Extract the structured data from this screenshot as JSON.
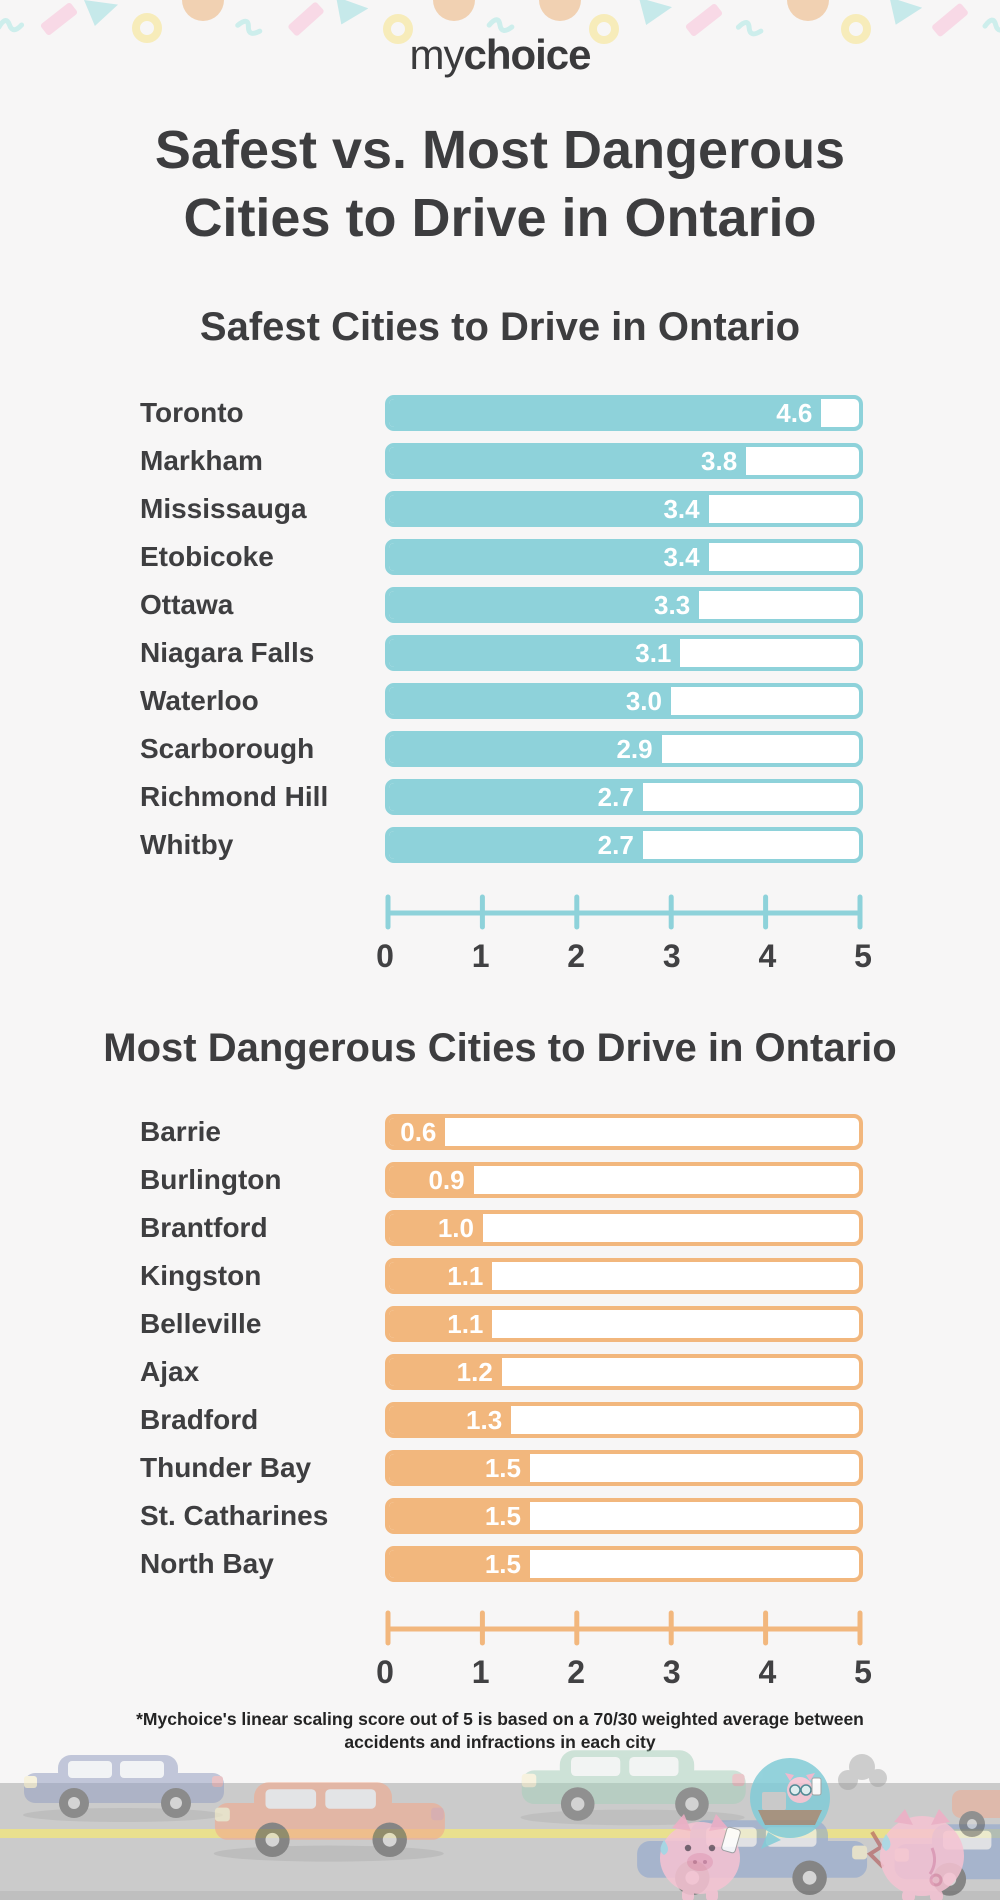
{
  "background_color": "#f7f6f6",
  "brand": {
    "logo_prefix": "my",
    "logo_suffix": "choice",
    "color": "#3a3a3c"
  },
  "header": {
    "title_line1": "Safest vs. Most Dangerous",
    "title_line2": "Cities to Drive in Ontario",
    "color": "#3d3d3f"
  },
  "footnote": {
    "line1": "*Mychoice's linear scaling score out of 5 is based on a 70/30 weighted average between",
    "line2": "accidents and infractions in each city"
  },
  "text_colors": {
    "city_labels": "#3e3e40",
    "axis_numbers": "#414143",
    "value_labels": "#ffffff"
  },
  "decor": {
    "confetti_shapes": [
      "pink-rectangle",
      "yellow-ring",
      "teal-triangle",
      "peach-semicircle",
      "teal-squiggle"
    ],
    "confetti_colors": {
      "pink_rectangle": "#f8d9e6",
      "yellow_ring": "#f7ecba",
      "teal_triangle": "#c6e9ea",
      "peach_semicircle": "#f1d1b2",
      "teal_squiggle": "#cdeeec"
    },
    "illustration_items": [
      "road",
      "yellow-lane-line",
      "blue-car",
      "orange-car",
      "green-car",
      "crashed-blue-cars",
      "smoke",
      "pig-on-phone",
      "pig-back-view",
      "thought-bubble-pig-laptop"
    ]
  },
  "chart_data": [
    {
      "type": "bar",
      "orientation": "horizontal",
      "title": "Safest Cities to Drive in Ontario",
      "categories": [
        "Toronto",
        "Markham",
        "Mississauga",
        "Etobicoke",
        "Ottawa",
        "Niagara Falls",
        "Waterloo",
        "Scarborough",
        "Richmond Hill",
        "Whitby"
      ],
      "values": [
        4.6,
        3.8,
        3.4,
        3.4,
        3.3,
        3.1,
        3.0,
        2.9,
        2.7,
        2.7
      ],
      "value_labels": [
        "4.6",
        "3.8",
        "3.4",
        "3.4",
        "3.3",
        "3.1",
        "3.0",
        "2.9",
        "2.7",
        "2.7"
      ],
      "xlabel": "",
      "ylabel": "",
      "xlim": [
        0,
        5
      ],
      "tick_labels": [
        "0",
        "1",
        "2",
        "3",
        "4",
        "5"
      ],
      "bar_color": "#8ed2da",
      "value_text_color": "#ffffff",
      "grid": false,
      "legend": "none"
    },
    {
      "type": "bar",
      "orientation": "horizontal",
      "title": "Most Dangerous Cities to Drive in Ontario",
      "categories": [
        "Barrie",
        "Burlington",
        "Brantford",
        "Kingston",
        "Belleville",
        "Ajax",
        "Bradford",
        "Thunder Bay",
        "St. Catharines",
        "North Bay"
      ],
      "values": [
        0.6,
        0.9,
        1.0,
        1.1,
        1.1,
        1.2,
        1.3,
        1.5,
        1.5,
        1.5
      ],
      "value_labels": [
        "0.6",
        "0.9",
        "1.0",
        "1.1",
        "1.1",
        "1.2",
        "1.3",
        "1.5",
        "1.5",
        "1.5"
      ],
      "xlabel": "",
      "ylabel": "",
      "xlim": [
        0,
        5
      ],
      "tick_labels": [
        "0",
        "1",
        "2",
        "3",
        "4",
        "5"
      ],
      "bar_color": "#f2b77d",
      "value_text_color": "#ffffff",
      "grid": false,
      "legend": "none"
    }
  ]
}
